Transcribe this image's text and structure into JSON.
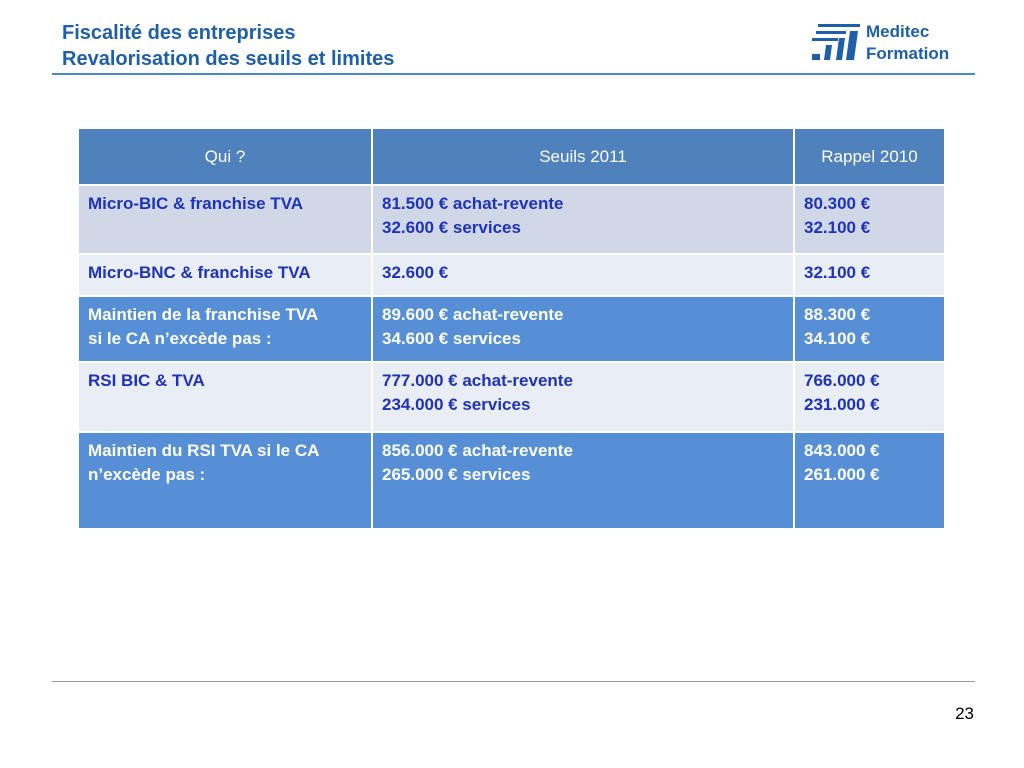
{
  "header": {
    "title_line1": "Fiscalité des entreprises",
    "title_line2": "Revalorisation des seuils et limites"
  },
  "logo": {
    "line1": "Meditec",
    "line2": "Formation",
    "icon": "meditec-logo-icon",
    "color": "#1f5fa8"
  },
  "table": {
    "headers": [
      "Qui ?",
      "Seuils 2011",
      "Rappel 2010"
    ],
    "rows": [
      {
        "qui": [
          "Micro-BIC & franchise TVA"
        ],
        "seuils_2011": [
          "81.500 € achat-revente",
          "32.600 € services"
        ],
        "rappel_2010": [
          "80.300 €",
          "32.100 €"
        ]
      },
      {
        "qui": [
          "Micro-BNC & franchise TVA"
        ],
        "seuils_2011": [
          "32.600 €"
        ],
        "rappel_2010": [
          "32.100 €"
        ]
      },
      {
        "qui": [
          "Maintien de la franchise TVA",
          "si le CA n’excède pas :"
        ],
        "seuils_2011": [
          "89.600 € achat-revente",
          "34.600 € services"
        ],
        "rappel_2010": [
          "88.300 €",
          "34.100 €"
        ]
      },
      {
        "qui": [
          "RSI BIC & TVA"
        ],
        "seuils_2011": [
          "777.000 € achat-revente",
          "234.000 € services"
        ],
        "rappel_2010": [
          "766.000 €",
          "231.000 €"
        ]
      },
      {
        "qui": [
          "Maintien du RSI TVA si le CA",
          "n’excède pas :"
        ],
        "seuils_2011": [
          "856.000 € achat-revente",
          "265.000 € services"
        ],
        "rappel_2010": [
          "843.000 €",
          "261.000 €"
        ]
      }
    ]
  },
  "colors": {
    "header_bg": "#4f81bd",
    "row_light_bg": "#d0d8e8",
    "row_lighter_bg": "#e9edf4",
    "row_dark_bg": "#568fd6",
    "light_text": "#1f33b8"
  },
  "footer": {
    "page_number": "23"
  }
}
